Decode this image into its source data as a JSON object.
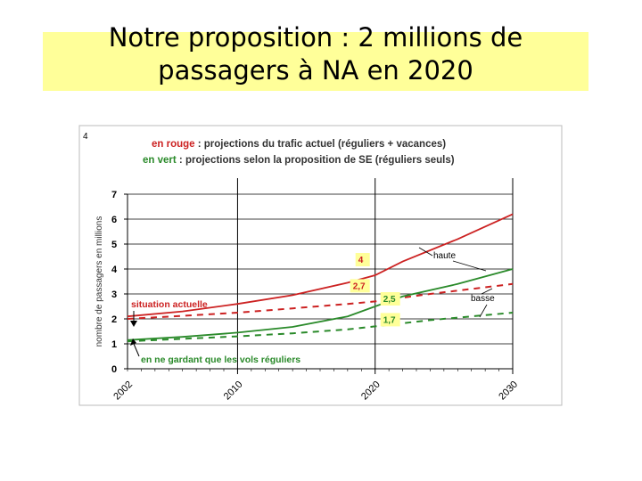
{
  "slide": {
    "title_line1": "Notre proposition : 2 millions de",
    "title_line2": "passagers à NA en 2020",
    "title_band_color": "#ffff99"
  },
  "chart_data": {
    "type": "line",
    "corner_label": "4",
    "legend_red_prefix": "en rouge",
    "legend_red_text": " : projections du trafic actuel (réguliers + vacances)",
    "legend_green_prefix": "en vert",
    "legend_green_text": " : projections selon la proposition de SE (réguliers seuls)",
    "ylabel": "nombre de passagers en millions",
    "xlabel": "",
    "xlim": [
      2002,
      2030
    ],
    "ylim": [
      0,
      7
    ],
    "y_ticks": [
      "0",
      "1",
      "2",
      "3",
      "4",
      "5",
      "6",
      "7"
    ],
    "x_ticks": [
      2002,
      2010,
      2020,
      2030
    ],
    "x_tick_labels": [
      "2002",
      "2010",
      "2020",
      "2030"
    ],
    "colors": {
      "red": "#cc2222",
      "green": "#2a8a2a",
      "label_bg": "#ffff99",
      "label_text": "#cc2222"
    },
    "series": [
      {
        "key": "red_haute",
        "color": "#cc2222",
        "dash": false,
        "x": [
          2002,
          2006,
          2010,
          2014,
          2018,
          2020,
          2022,
          2026,
          2030
        ],
        "y": [
          2.1,
          2.3,
          2.6,
          2.95,
          3.45,
          3.75,
          4.3,
          5.2,
          6.2
        ]
      },
      {
        "key": "red_basse",
        "color": "#cc2222",
        "dash": true,
        "x": [
          2002,
          2006,
          2010,
          2014,
          2018,
          2020,
          2024,
          2030
        ],
        "y": [
          2.0,
          2.12,
          2.25,
          2.42,
          2.6,
          2.7,
          3.0,
          3.4
        ]
      },
      {
        "key": "green_haute",
        "color": "#2a8a2a",
        "dash": false,
        "x": [
          2002,
          2006,
          2010,
          2014,
          2018,
          2020,
          2022,
          2026,
          2030
        ],
        "y": [
          1.15,
          1.28,
          1.45,
          1.68,
          2.1,
          2.5,
          2.9,
          3.4,
          4.0
        ]
      },
      {
        "key": "green_basse",
        "color": "#2a8a2a",
        "dash": true,
        "x": [
          2002,
          2006,
          2010,
          2014,
          2018,
          2020,
          2024,
          2030
        ],
        "y": [
          1.1,
          1.2,
          1.3,
          1.42,
          1.58,
          1.7,
          1.95,
          2.25
        ]
      }
    ],
    "annotations": {
      "current": "situation actuelle",
      "regular_only": "en ne gardant que les vols réguliers",
      "haute": "haute",
      "basse": "basse",
      "value_labels": [
        {
          "text": "4",
          "x": 2020,
          "y": 4.0
        },
        {
          "text": "2,7",
          "x": 2020,
          "y": 2.7
        },
        {
          "text": "2,5",
          "x": 2020,
          "y": 2.5
        },
        {
          "text": "1,7",
          "x": 2020,
          "y": 1.7
        }
      ]
    }
  }
}
